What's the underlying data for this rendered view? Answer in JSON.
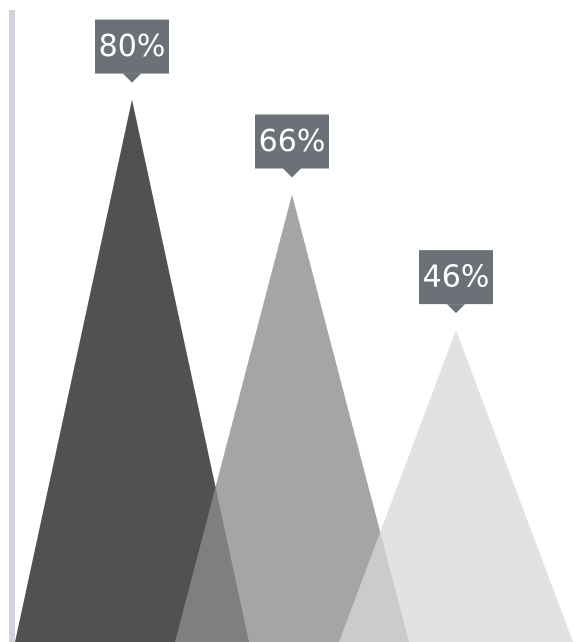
{
  "chart_data": {
    "type": "area",
    "title": "",
    "xlabel": "",
    "ylabel": "",
    "ylim": [
      0,
      100
    ],
    "series": [
      {
        "value": 80,
        "label": "80%",
        "color": "#424242",
        "opacity": 0.92
      },
      {
        "value": 66,
        "label": "66%",
        "color": "#8c8c8e",
        "opacity": 0.78
      },
      {
        "value": 46,
        "label": "46%",
        "color": "#d8d8da",
        "opacity": 0.75
      }
    ],
    "label_box_color": "#6b7176",
    "axis_color": "#d0d5db",
    "grid": false,
    "legend": "none"
  }
}
